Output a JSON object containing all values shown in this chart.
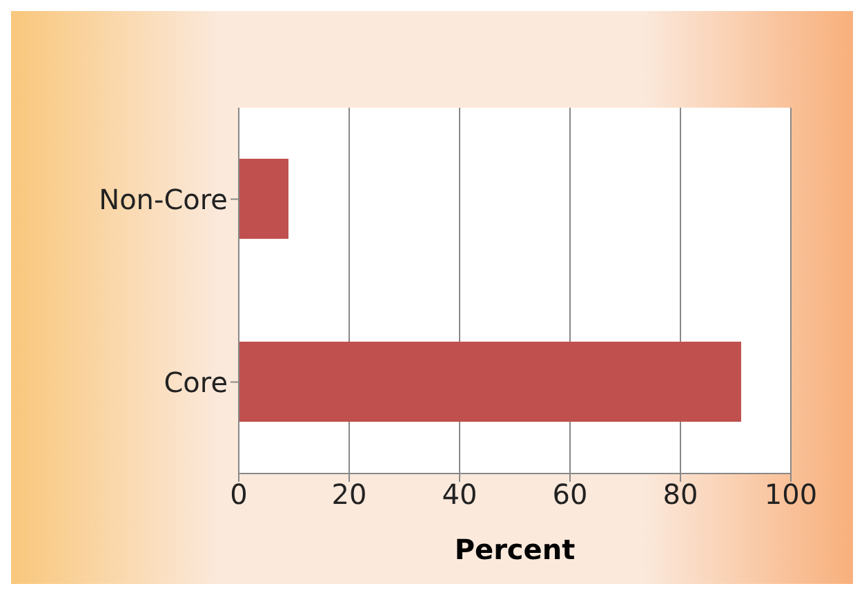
{
  "chart_data": {
    "type": "bar",
    "orientation": "horizontal",
    "xlabel": "Percent",
    "categories": [
      "Non-Core",
      "Core"
    ],
    "values": [
      9,
      91
    ],
    "color": "#c0504d",
    "xlim": [
      0,
      100
    ],
    "xticks": [
      0,
      20,
      40,
      60,
      80,
      100
    ],
    "grid": "x"
  }
}
